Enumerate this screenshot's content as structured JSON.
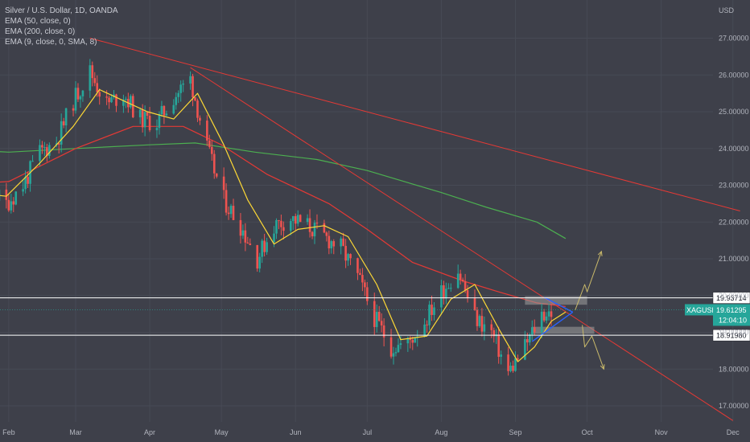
{
  "header": {
    "title": "Silver / U.S. Dollar, 1D, OANDA",
    "indicators": [
      "EMA (50, close, 0)",
      "EMA (200, close, 0)",
      "EMA (9, close, 0, SMA, 8)"
    ]
  },
  "colors": {
    "background": "#3e404a",
    "up_candle": "#26a69a",
    "down_candle": "#ef5350",
    "ema50": "#e53935",
    "ema200": "#4caf50",
    "ema9": "#fdd835",
    "trendline": "#e53935",
    "triangle": "#2962ff",
    "projection": "#c8b86a",
    "level_line": "#ffffff",
    "zone": "#9e9e9e",
    "axis_text": "#b2b5be",
    "price_label": "#26a69a"
  },
  "chart_data": {
    "type": "candlestick",
    "title": "Silver / U.S. Dollar, 1D, OANDA",
    "currency": "USD",
    "y_axis_ticks": [
      "27.00000",
      "26.00000",
      "25.00000",
      "24.00000",
      "23.00000",
      "22.00000",
      "21.00000",
      "20.00000",
      "19.00000",
      "18.00000",
      "17.00000"
    ],
    "x_axis_ticks": [
      "Feb",
      "Mar",
      "Apr",
      "May",
      "Jun",
      "Jul",
      "Aug",
      "Sep",
      "Oct",
      "Nov",
      "Dec"
    ],
    "ylim": [
      16.5,
      27.6
    ],
    "symbol": "XAGUSD",
    "last_price": "19.61295",
    "countdown": "12:04:10",
    "horizontal_levels": [
      {
        "label": "19.93714",
        "value": 19.93714
      },
      {
        "label": "18.91980",
        "value": 18.9198
      }
    ],
    "close_series": [
      {
        "date": "2022-01-03",
        "close": 23.3
      },
      {
        "date": "2022-01-10",
        "close": 22.7
      },
      {
        "date": "2022-01-17",
        "close": 23.4
      },
      {
        "date": "2022-01-24",
        "close": 22.9
      },
      {
        "date": "2022-01-31",
        "close": 22.5
      },
      {
        "date": "2022-02-07",
        "close": 23.0
      },
      {
        "date": "2022-02-14",
        "close": 23.9
      },
      {
        "date": "2022-02-21",
        "close": 24.2
      },
      {
        "date": "2022-02-28",
        "close": 25.3
      },
      {
        "date": "2022-03-07",
        "close": 26.1
      },
      {
        "date": "2022-03-14",
        "close": 25.2
      },
      {
        "date": "2022-03-21",
        "close": 25.5
      },
      {
        "date": "2022-03-28",
        "close": 24.8
      },
      {
        "date": "2022-04-04",
        "close": 24.7
      },
      {
        "date": "2022-04-11",
        "close": 25.4
      },
      {
        "date": "2022-04-18",
        "close": 25.9
      },
      {
        "date": "2022-04-25",
        "close": 24.0
      },
      {
        "date": "2022-05-02",
        "close": 22.6
      },
      {
        "date": "2022-05-09",
        "close": 21.9
      },
      {
        "date": "2022-05-16",
        "close": 21.0
      },
      {
        "date": "2022-05-23",
        "close": 21.9
      },
      {
        "date": "2022-05-30",
        "close": 22.1
      },
      {
        "date": "2022-06-06",
        "close": 21.9
      },
      {
        "date": "2022-06-13",
        "close": 21.6
      },
      {
        "date": "2022-06-20",
        "close": 21.3
      },
      {
        "date": "2022-06-27",
        "close": 20.5
      },
      {
        "date": "2022-07-04",
        "close": 19.4
      },
      {
        "date": "2022-07-11",
        "close": 18.6
      },
      {
        "date": "2022-07-18",
        "close": 18.7
      },
      {
        "date": "2022-07-25",
        "close": 19.3
      },
      {
        "date": "2022-08-01",
        "close": 20.1
      },
      {
        "date": "2022-08-08",
        "close": 20.7
      },
      {
        "date": "2022-08-15",
        "close": 19.4
      },
      {
        "date": "2022-08-22",
        "close": 19.0
      },
      {
        "date": "2022-08-29",
        "close": 17.9
      },
      {
        "date": "2022-09-05",
        "close": 18.6
      },
      {
        "date": "2022-09-12",
        "close": 19.5
      },
      {
        "date": "2022-09-19",
        "close": 19.6
      }
    ],
    "ema9": [
      {
        "date": "2022-01-03",
        "value": 23.4
      },
      {
        "date": "2022-01-17",
        "value": 22.8
      },
      {
        "date": "2022-01-31",
        "value": 22.7
      },
      {
        "date": "2022-02-14",
        "value": 23.6
      },
      {
        "date": "2022-02-28",
        "value": 24.6
      },
      {
        "date": "2022-03-11",
        "value": 25.6
      },
      {
        "date": "2022-03-21",
        "value": 25.3
      },
      {
        "date": "2022-03-31",
        "value": 25.0
      },
      {
        "date": "2022-04-11",
        "value": 24.8
      },
      {
        "date": "2022-04-21",
        "value": 25.5
      },
      {
        "date": "2022-05-02",
        "value": 24.1
      },
      {
        "date": "2022-05-12",
        "value": 22.6
      },
      {
        "date": "2022-05-23",
        "value": 21.4
      },
      {
        "date": "2022-06-02",
        "value": 21.8
      },
      {
        "date": "2022-06-13",
        "value": 21.9
      },
      {
        "date": "2022-06-23",
        "value": 21.6
      },
      {
        "date": "2022-07-05",
        "value": 20.3
      },
      {
        "date": "2022-07-15",
        "value": 18.8
      },
      {
        "date": "2022-07-26",
        "value": 18.9
      },
      {
        "date": "2022-08-05",
        "value": 19.9
      },
      {
        "date": "2022-08-15",
        "value": 20.3
      },
      {
        "date": "2022-08-25",
        "value": 19.1
      },
      {
        "date": "2022-09-02",
        "value": 18.2
      },
      {
        "date": "2022-09-09",
        "value": 18.6
      },
      {
        "date": "2022-09-16",
        "value": 19.3
      },
      {
        "date": "2022-09-22",
        "value": 19.55
      }
    ],
    "ema50": [
      {
        "date": "2022-01-03",
        "value": 23.0
      },
      {
        "date": "2022-02-01",
        "value": 23.1
      },
      {
        "date": "2022-03-01",
        "value": 24.0
      },
      {
        "date": "2022-03-25",
        "value": 24.6
      },
      {
        "date": "2022-04-15",
        "value": 24.6
      },
      {
        "date": "2022-05-01",
        "value": 24.1
      },
      {
        "date": "2022-05-20",
        "value": 23.3
      },
      {
        "date": "2022-06-15",
        "value": 22.5
      },
      {
        "date": "2022-07-01",
        "value": 21.8
      },
      {
        "date": "2022-07-20",
        "value": 20.9
      },
      {
        "date": "2022-08-10",
        "value": 20.4
      },
      {
        "date": "2022-08-25",
        "value": 20.1
      },
      {
        "date": "2022-09-10",
        "value": 19.8
      },
      {
        "date": "2022-09-22",
        "value": 19.7
      }
    ],
    "ema200": [
      {
        "date": "2022-01-01",
        "value": 24.0
      },
      {
        "date": "2022-02-01",
        "value": 23.9
      },
      {
        "date": "2022-03-01",
        "value": 24.0
      },
      {
        "date": "2022-04-01",
        "value": 24.1
      },
      {
        "date": "2022-04-20",
        "value": 24.15
      },
      {
        "date": "2022-05-15",
        "value": 23.9
      },
      {
        "date": "2022-06-10",
        "value": 23.7
      },
      {
        "date": "2022-07-01",
        "value": 23.4
      },
      {
        "date": "2022-08-01",
        "value": 22.8
      },
      {
        "date": "2022-08-20",
        "value": 22.4
      },
      {
        "date": "2022-09-10",
        "value": 22.0
      },
      {
        "date": "2022-09-22",
        "value": 21.55
      }
    ],
    "trendlines": [
      {
        "from": {
          "date": "2022-03-07",
          "value": 27.0
        },
        "to": {
          "date": "2022-12-04",
          "value": 22.3
        }
      },
      {
        "from": {
          "date": "2022-04-18",
          "value": 26.2
        },
        "to": {
          "date": "2022-12-01",
          "value": 16.6
        }
      }
    ],
    "triangle_pattern": [
      {
        "date": "2022-09-13",
        "value": 19.95
      },
      {
        "date": "2022-09-25",
        "value": 19.55
      },
      {
        "date": "2022-09-08",
        "value": 18.75
      },
      {
        "date": "2022-09-25",
        "value": 19.55
      }
    ],
    "zones": [
      {
        "from_date": "2022-09-05",
        "to_date": "2022-10-01",
        "low": 19.75,
        "high": 19.98
      },
      {
        "from_date": "2022-09-08",
        "to_date": "2022-10-04",
        "low": 18.96,
        "high": 19.15
      }
    ],
    "projections": [
      {
        "points": [
          {
            "date": "2022-09-26",
            "value": 19.6
          },
          {
            "date": "2022-09-30",
            "value": 20.3
          },
          {
            "date": "2022-10-01",
            "value": 20.1
          },
          {
            "date": "2022-10-07",
            "value": 21.2
          }
        ]
      },
      {
        "points": [
          {
            "date": "2022-09-29",
            "value": 19.2
          },
          {
            "date": "2022-09-30",
            "value": 18.6
          },
          {
            "date": "2022-10-03",
            "value": 18.9
          },
          {
            "date": "2022-10-08",
            "value": 18.0
          }
        ]
      }
    ]
  }
}
